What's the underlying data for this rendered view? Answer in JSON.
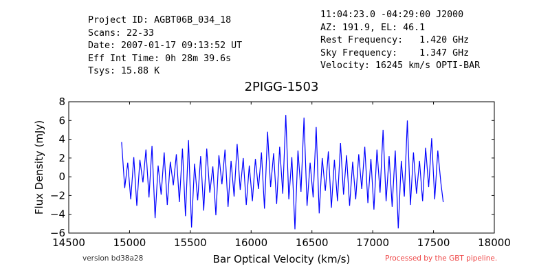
{
  "header": {
    "left": [
      "Project ID: AGBT06B_034_18",
      "Scans: 22-33",
      "Date: 2007-01-17 09:13:52 UT",
      "Eff Int Time: 0h 28m 39.6s",
      "Tsys: 15.88 K"
    ],
    "right": [
      "11:04:23.0 -04:29:00 J2000",
      "AZ: 191.9, EL: 46.1",
      "Rest Frequency:   1.420 GHz",
      "Sky Frequency:    1.347 GHz",
      "Velocity: 16245 km/s OPTI-BAR"
    ]
  },
  "footer": {
    "version": "version bd38a28",
    "pipeline": "Processed by the GBT pipeline.",
    "pipeline_color": "#ee4444"
  },
  "chart_data": {
    "type": "line",
    "title": "2PIGG-1503",
    "xlabel": "Bar Optical Velocity (km/s)",
    "ylabel": "Flux Density (mJy)",
    "xlim": [
      14500,
      18000
    ],
    "ylim": [
      -6,
      8
    ],
    "xticks": [
      14500,
      15000,
      15500,
      16000,
      16500,
      17000,
      17500,
      18000
    ],
    "yticks": [
      -6,
      -4,
      -2,
      0,
      2,
      4,
      6,
      8
    ],
    "grid": false,
    "series": [
      {
        "color": "#0000ff",
        "x": [
          14935,
          14960,
          14985,
          15010,
          15035,
          15060,
          15085,
          15110,
          15135,
          15160,
          15185,
          15210,
          15235,
          15260,
          15285,
          15310,
          15335,
          15360,
          15385,
          15410,
          15435,
          15460,
          15485,
          15510,
          15535,
          15560,
          15585,
          15610,
          15635,
          15660,
          15685,
          15710,
          15735,
          15760,
          15785,
          15810,
          15835,
          15860,
          15885,
          15910,
          15935,
          15960,
          15985,
          16010,
          16035,
          16060,
          16085,
          16110,
          16135,
          16160,
          16185,
          16210,
          16235,
          16260,
          16285,
          16310,
          16335,
          16360,
          16385,
          16410,
          16435,
          16460,
          16485,
          16510,
          16535,
          16560,
          16585,
          16610,
          16635,
          16660,
          16685,
          16710,
          16735,
          16760,
          16785,
          16810,
          16835,
          16860,
          16885,
          16910,
          16935,
          16960,
          16985,
          17010,
          17035,
          17060,
          17085,
          17110,
          17135,
          17160,
          17185,
          17210,
          17235,
          17260,
          17285,
          17310,
          17335,
          17360,
          17385,
          17410,
          17435,
          17460,
          17485,
          17510,
          17535,
          17560,
          17580
        ],
        "y": [
          3.7,
          -1.2,
          1.5,
          -2.4,
          2.1,
          -3.1,
          1.8,
          -0.6,
          2.9,
          -2.2,
          3.3,
          -4.4,
          1.2,
          -1.9,
          2.6,
          -3.0,
          1.6,
          -0.9,
          2.4,
          -2.7,
          3.0,
          -4.2,
          3.9,
          -5.4,
          1.4,
          -2.5,
          2.2,
          -3.6,
          3.0,
          -1.7,
          1.1,
          -4.1,
          2.3,
          -0.8,
          2.9,
          -3.2,
          1.7,
          -2.1,
          3.5,
          -1.4,
          2.0,
          -3.0,
          1.2,
          -2.6,
          1.9,
          -1.3,
          2.6,
          -3.4,
          4.8,
          -1.1,
          2.5,
          -2.9,
          3.2,
          -1.8,
          6.6,
          -2.4,
          2.1,
          -5.6,
          2.8,
          -1.6,
          6.3,
          -3.1,
          1.5,
          -2.2,
          5.3,
          -3.9,
          2.0,
          -1.5,
          2.7,
          -3.3,
          1.8,
          -2.6,
          3.6,
          -1.9,
          2.3,
          -3.1,
          1.6,
          -2.4,
          2.4,
          -1.3,
          3.2,
          -2.8,
          1.9,
          -3.5,
          2.9,
          -1.7,
          5.0,
          -2.6,
          2.2,
          -3.2,
          2.8,
          -5.5,
          1.7,
          -2.1,
          6.0,
          -3.0,
          2.6,
          -1.8,
          1.7,
          -2.6,
          3.1,
          -1.1,
          4.1,
          -2.4,
          2.8,
          -0.6,
          -2.7
        ]
      }
    ]
  }
}
